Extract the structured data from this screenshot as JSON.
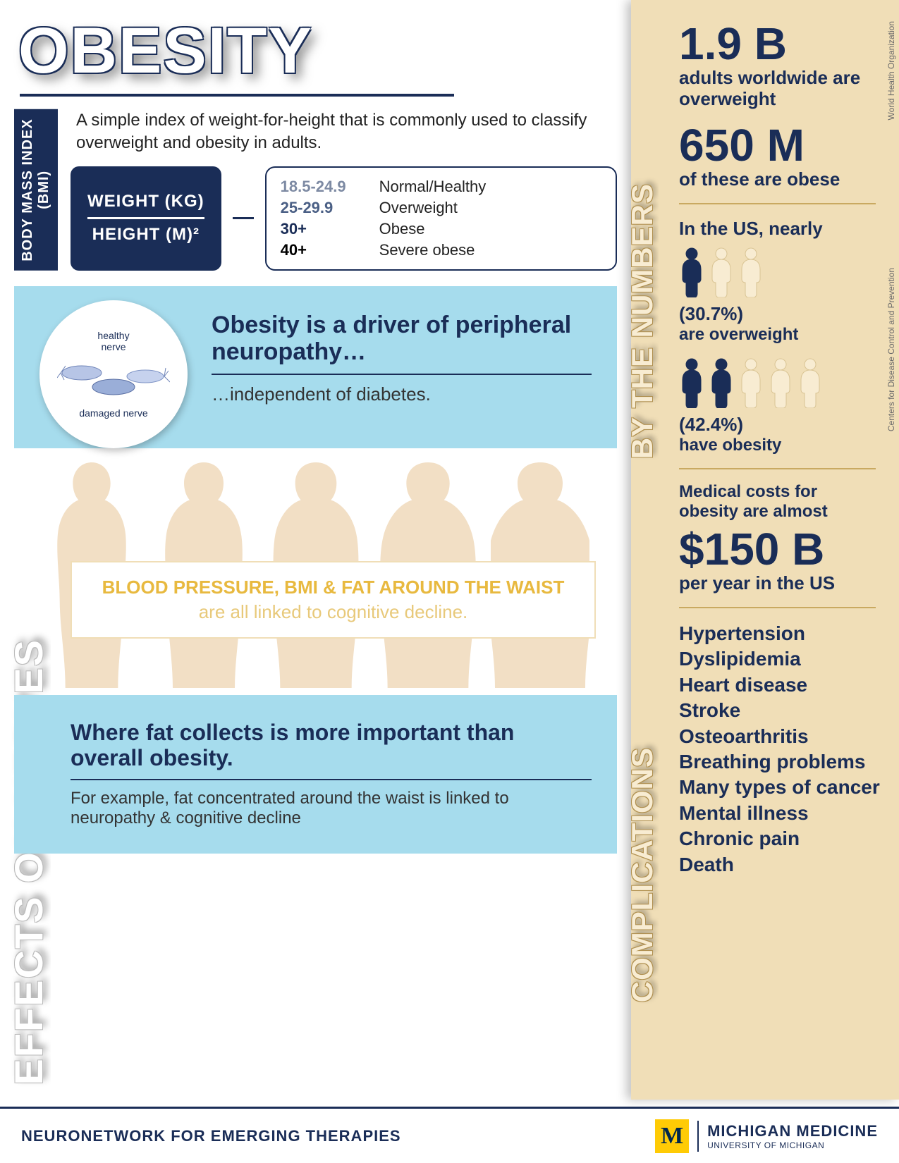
{
  "title": "OBESITY",
  "colors": {
    "navy": "#1a2d57",
    "light_blue": "#a6dced",
    "beige": "#f0deb7",
    "silhouette": "#f2dfc5",
    "gold": "#e8b93f",
    "maize": "#ffcb05"
  },
  "bmi": {
    "tab_label": "BODY MASS INDEX\n(BMI)",
    "description": "A simple index of weight-for-height that is commonly used to classify overweight and obesity in adults.",
    "formula_top": "WEIGHT (KG)",
    "formula_bottom": "HEIGHT (M)²",
    "ranges": [
      {
        "value": "18.5-24.9",
        "label": "Normal/Healthy",
        "color": "#7d8aa3"
      },
      {
        "value": "25-29.9",
        "label": "Overweight",
        "color": "#4a5f85"
      },
      {
        "value": "30+",
        "label": "Obese",
        "color": "#1a2d57"
      },
      {
        "value": "40+",
        "label": "Severe obese",
        "color": "#000000"
      }
    ]
  },
  "effects": {
    "section_label": "EFFECTS ON NERVES",
    "nerve_circle_top": "healthy\nnerve",
    "nerve_circle_bottom": "damaged nerve",
    "block1_title": "Obesity is a driver of peripheral neuropathy…",
    "block1_sub": "…independent of diabetes.",
    "cognitive_bold": "BLOOD PRESSURE, BMI & FAT AROUND THE WAIST",
    "cognitive_rest": " are all linked to cognitive decline.",
    "block2_title": "Where fat collects is more important than overall obesity.",
    "block2_sub": "For example, fat concentrated around the waist is linked to neuropathy & cognitive decline"
  },
  "numbers": {
    "section_label": "BY THE NUMBERS",
    "source1": "World Health Organization",
    "source2": "Centers for Disease Control and Prevention",
    "stat1_value": "1.9 B",
    "stat1_label": "adults worldwide are overweight",
    "stat2_value": "650 M",
    "stat2_label": "of these are obese",
    "us_intro": "In the US, nearly",
    "us_over_pct": "(30.7%)",
    "us_over_label": "are overweight",
    "us_over_filled": 1,
    "us_over_total": 3,
    "us_obese_pct": "(42.4%)",
    "us_obese_label": "have obesity",
    "us_obese_filled": 2,
    "us_obese_total": 5,
    "cost_intro": "Medical costs for obesity are almost",
    "cost_value": "$150 B",
    "cost_unit": "per year in the US"
  },
  "complications": {
    "section_label": "COMPLICATIONS",
    "items": [
      "Hypertension",
      "Dyslipidemia",
      "Heart disease",
      "Stroke",
      "Osteoarthritis",
      "Breathing problems",
      "Many types of cancer",
      "Mental illness",
      "Chronic pain",
      "Death"
    ]
  },
  "footer": {
    "left": "NEURONETWORK FOR EMERGING THERAPIES",
    "logo_letter": "M",
    "brand_top": "MICHIGAN MEDICINE",
    "brand_bottom": "UNIVERSITY OF MICHIGAN"
  }
}
